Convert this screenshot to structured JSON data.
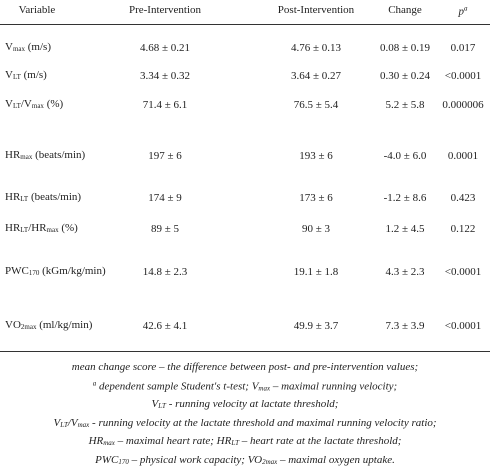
{
  "header": {
    "variable": "Variable",
    "pre": "Pre-Intervention",
    "post": "Post-Intervention",
    "change": "Change",
    "p": [
      {
        "text": "p"
      },
      {
        "text": "a",
        "style": "sup"
      }
    ]
  },
  "rows": [
    {
      "label": [
        {
          "text": "V"
        },
        {
          "text": "max",
          "style": "sub"
        },
        {
          "text": " (m/s)"
        }
      ],
      "pre": "4.68 ± 0.21",
      "post": "4.76 ± 0.13",
      "change": "0.08 ± 0.19",
      "p": "0.017"
    },
    {
      "label": [
        {
          "text": "V"
        },
        {
          "text": "LT",
          "style": "sub"
        },
        {
          "text": " (m/s)"
        }
      ],
      "pre": "3.34 ± 0.32",
      "post": "3.64 ± 0.27",
      "change": "0.30 ± 0.24",
      "p": "<0.0001"
    },
    {
      "label": [
        {
          "text": "V"
        },
        {
          "text": "LT",
          "style": "sub"
        },
        {
          "text": "/V"
        },
        {
          "text": "max",
          "style": "sub"
        },
        {
          "text": " (%)"
        }
      ],
      "pre": "71.4 ± 6.1",
      "post": "76.5 ± 5.4",
      "change": "5.2 ± 5.8",
      "p": "0.000006"
    },
    {
      "label": [
        {
          "text": "HR"
        },
        {
          "text": "max",
          "style": "sub"
        },
        {
          "text": " (beats/min)"
        }
      ],
      "pre": "197 ± 6",
      "post": "193 ± 6",
      "change": "-4.0 ± 6.0",
      "p": "0.0001"
    },
    {
      "label": [
        {
          "text": "HR"
        },
        {
          "text": "LT",
          "style": "sub"
        },
        {
          "text": " (beats/min)"
        }
      ],
      "pre": "174 ± 9",
      "post": "173 ± 6",
      "change": "-1.2 ± 8.6",
      "p": "0.423"
    },
    {
      "label": [
        {
          "text": "HR"
        },
        {
          "text": "LT",
          "style": "sub"
        },
        {
          "text": "/HR"
        },
        {
          "text": "max",
          "style": "sub"
        },
        {
          "text": " (%)"
        }
      ],
      "pre": "89 ± 5",
      "post": "90 ± 3",
      "change": "1.2 ± 4.5",
      "p": "0.122"
    },
    {
      "label": [
        {
          "text": "PWC"
        },
        {
          "text": "170",
          "style": "sub"
        },
        {
          "text": " (kGm/kg/min)"
        }
      ],
      "pre": "14.8 ± 2.3",
      "post": "19.1 ± 1.8",
      "change": "4.3 ± 2.3",
      "p": "<0.0001"
    },
    {
      "label": [
        {
          "text": "VO"
        },
        {
          "text": "2max",
          "style": "sub"
        },
        {
          "text": " (ml/kg/min)"
        }
      ],
      "pre": "42.6 ± 4.1",
      "post": "49.9 ± 3.7",
      "change": "7.3 ± 3.9",
      "p": "<0.0001"
    }
  ],
  "footnotes": [
    [
      {
        "text": "mean change score – the difference between post- and pre-intervention values;"
      }
    ],
    [
      {
        "text": "a",
        "style": "sup"
      },
      {
        "text": "  dependent sample Student's t-test; V"
      },
      {
        "text": "max",
        "style": "sub"
      },
      {
        "text": " – maximal running velocity;"
      }
    ],
    [
      {
        "text": "V"
      },
      {
        "text": "LT",
        "style": "sub"
      },
      {
        "text": "  -  running velocity at lactate threshold;"
      }
    ],
    [
      {
        "text": "V"
      },
      {
        "text": "LT",
        "style": "sub"
      },
      {
        "text": "/V"
      },
      {
        "text": "max",
        "style": "sub"
      },
      {
        "text": "  - running velocity at the lactate threshold and maximal running velocity ratio;"
      }
    ],
    [
      {
        "text": "HR"
      },
      {
        "text": "max",
        "style": "sub"
      },
      {
        "text": " – maximal heart rate; HR"
      },
      {
        "text": "LT",
        "style": "sub"
      },
      {
        "text": " – heart rate at the lactate threshold;"
      }
    ],
    [
      {
        "text": "PWC"
      },
      {
        "text": "170",
        "style": "sub"
      },
      {
        "text": " – physical work capacity; VO"
      },
      {
        "text": "2max",
        "style": "sub"
      },
      {
        "text": " – maximal oxygen uptake."
      }
    ]
  ]
}
